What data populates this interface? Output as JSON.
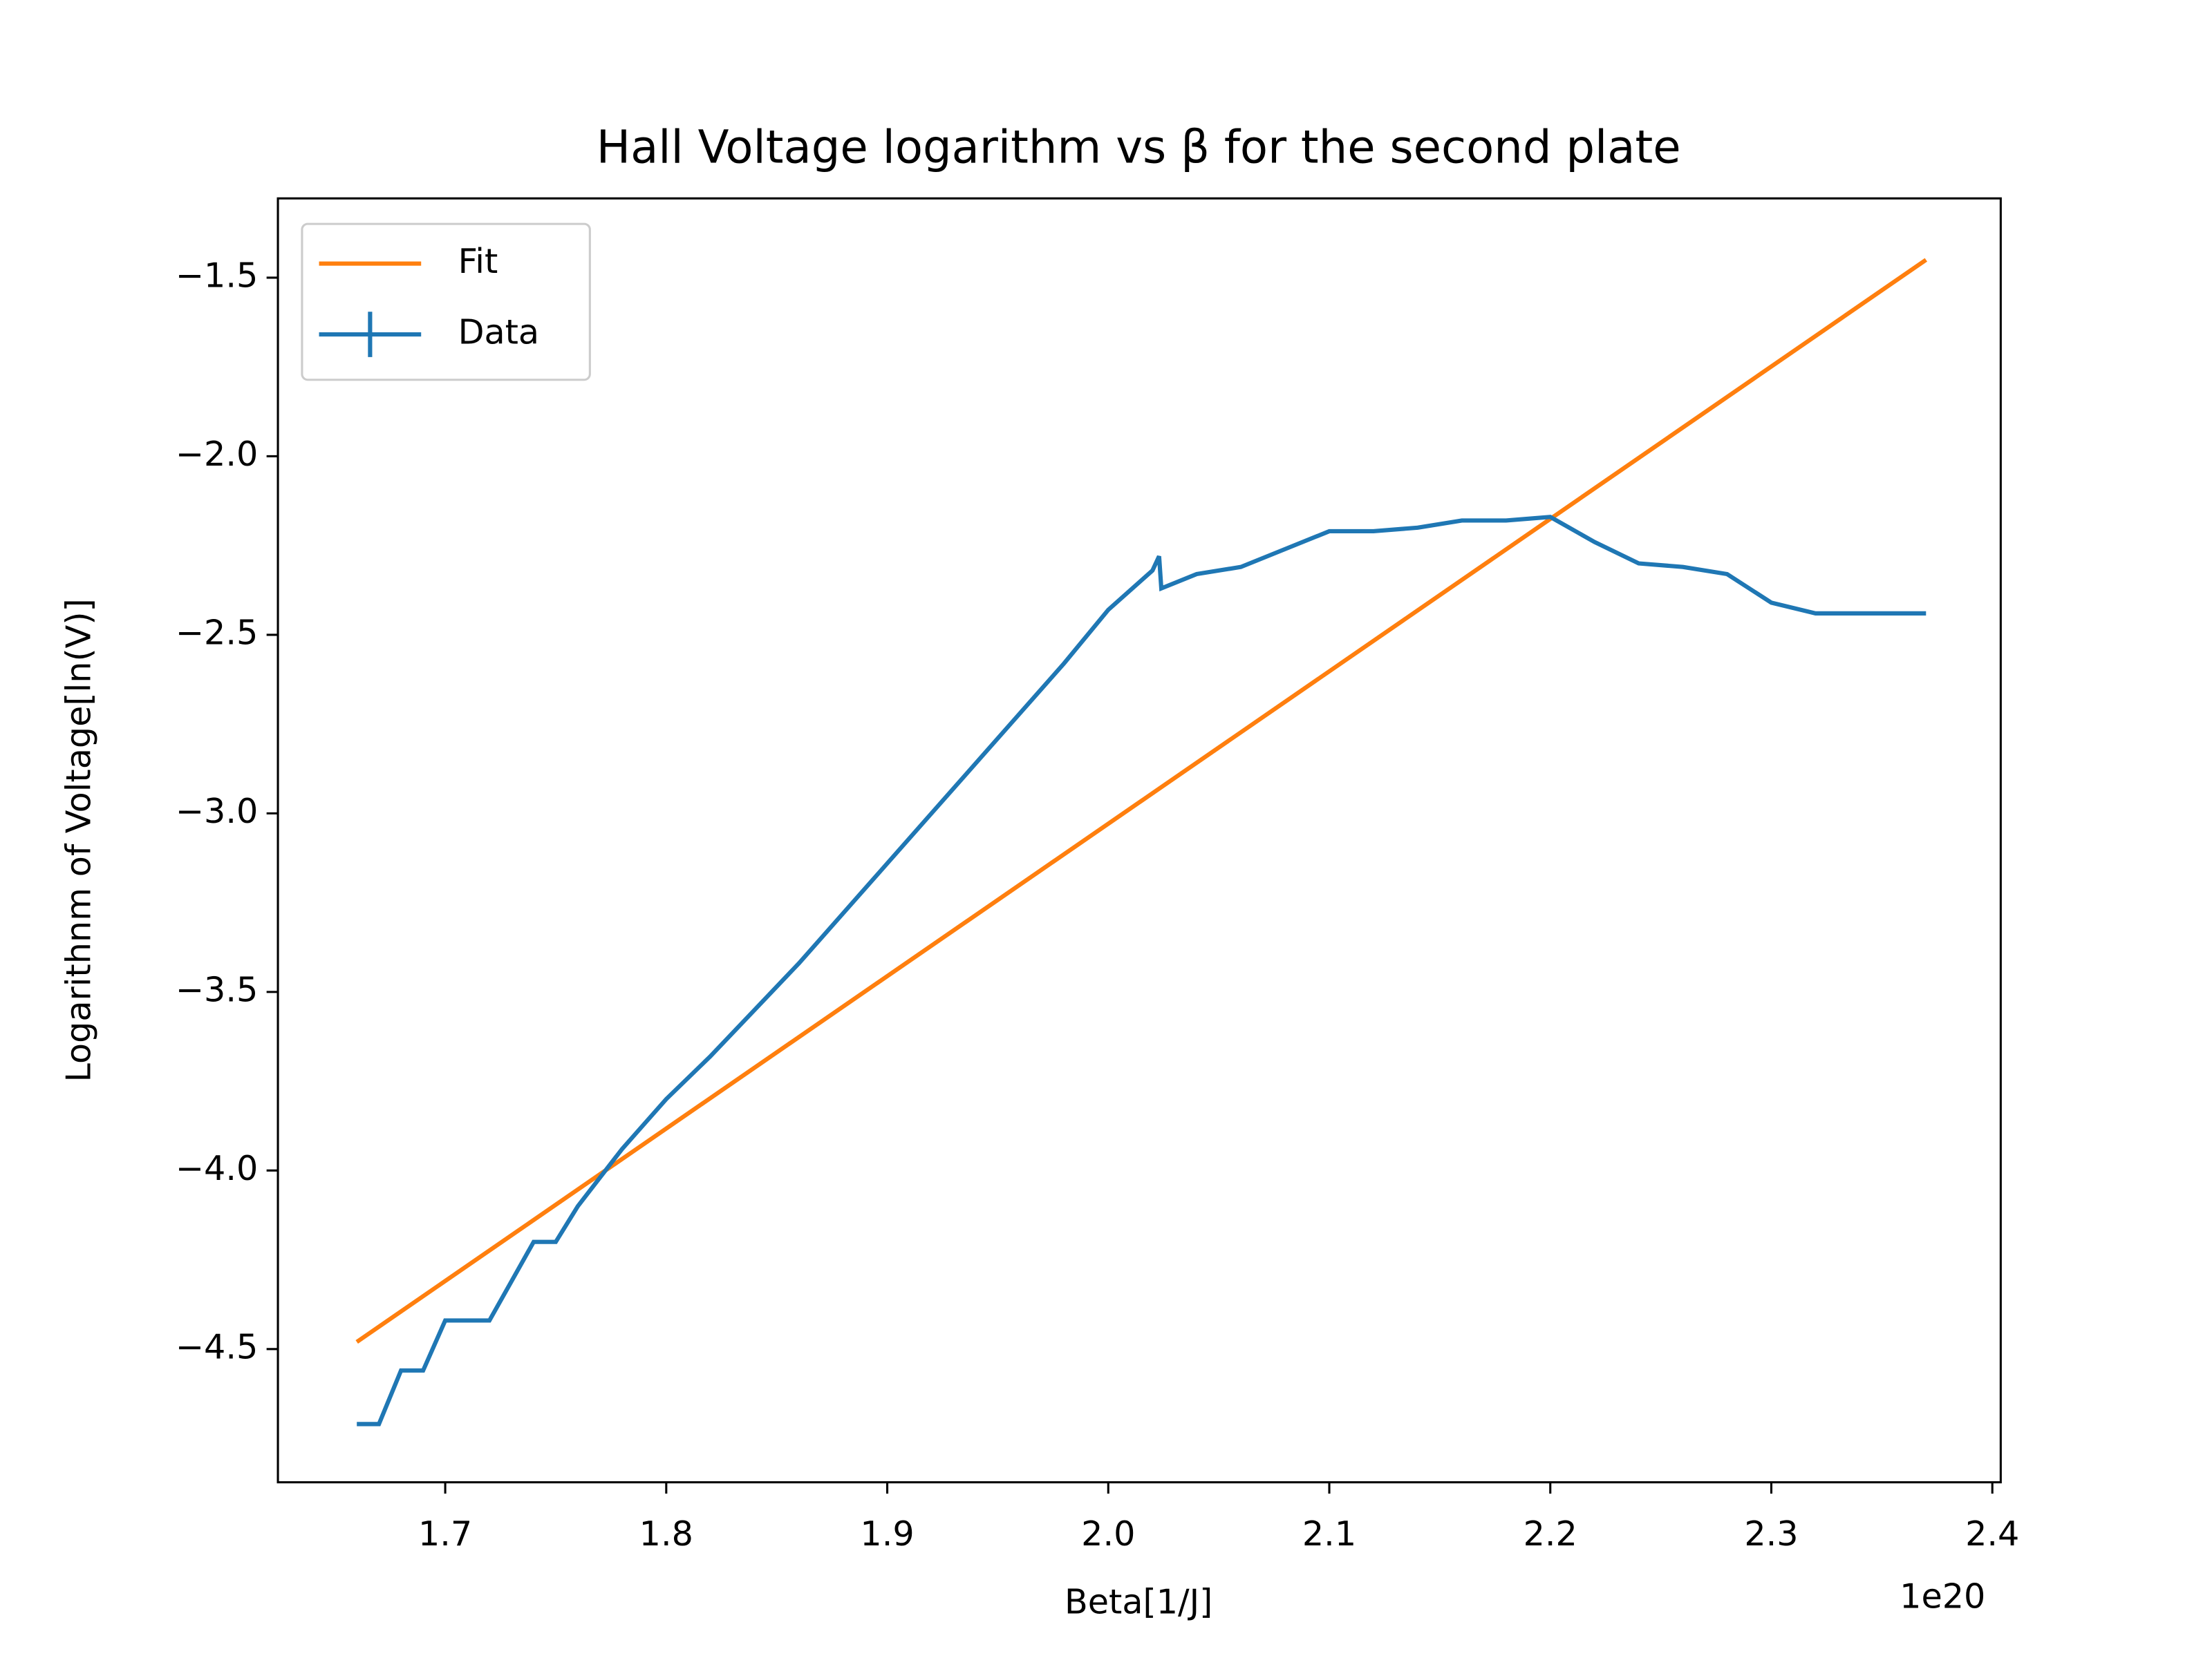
{
  "chart_data": {
    "type": "line",
    "title": "Hall Voltage logarithm vs β for the second plate",
    "x_label": "Beta[1/J]",
    "y_label": "Logarithnm of Voltage[ln(V)]",
    "x_offset_label": "1e20",
    "xlim": [
      1.6243,
      2.4038
    ],
    "ylim": [
      -4.873,
      -1.278
    ],
    "xticks": [
      1.7,
      1.8,
      1.9,
      {
        "value": 2,
        "label": "2.0"
      },
      2.1,
      2.2,
      2.3,
      2.4
    ],
    "yticks": [
      {
        "value": -1.5,
        "label": "−1.5"
      },
      {
        "value": -2,
        "label": "−2.0"
      },
      {
        "value": -2.5,
        "label": "−2.5"
      },
      {
        "value": -3,
        "label": "−3.0"
      },
      {
        "value": -3.5,
        "label": "−3.5"
      },
      {
        "value": -4,
        "label": "−4.0"
      },
      {
        "value": -4.5,
        "label": "−4.5"
      }
    ],
    "legend": "upper left",
    "series": [
      {
        "name": "Fit",
        "color": "#ff7f0e",
        "x": [
          1.66,
          2.37
        ],
        "values": [
          -4.48,
          -1.45
        ]
      },
      {
        "name": "Data",
        "color": "#1f77b4",
        "x": [
          1.66,
          1.67,
          1.68,
          1.69,
          1.7,
          1.71,
          1.72,
          1.73,
          1.74,
          1.75,
          1.76,
          1.77,
          1.78,
          1.79,
          1.8,
          1.82,
          1.84,
          1.86,
          1.88,
          1.9,
          1.92,
          1.94,
          1.96,
          1.98,
          2.0,
          2.02,
          2.023,
          2.024,
          2.04,
          2.06,
          2.08,
          2.1,
          2.12,
          2.14,
          2.16,
          2.18,
          2.2,
          2.22,
          2.24,
          2.26,
          2.28,
          2.3,
          2.32,
          2.34,
          2.37
        ],
        "values": [
          -4.71,
          -4.71,
          -4.56,
          -4.56,
          -4.42,
          -4.42,
          -4.42,
          -4.31,
          -4.2,
          -4.2,
          -4.1,
          -4.02,
          -3.94,
          -3.87,
          -3.8,
          -3.68,
          -3.55,
          -3.42,
          -3.28,
          -3.14,
          -3.0,
          -2.86,
          -2.72,
          -2.58,
          -2.43,
          -2.32,
          -2.28,
          -2.37,
          -2.33,
          -2.31,
          -2.26,
          -2.21,
          -2.21,
          -2.2,
          -2.18,
          -2.18,
          -2.17,
          -2.24,
          -2.3,
          -2.31,
          -2.33,
          -2.41,
          -2.44,
          -2.44,
          -2.44
        ]
      }
    ]
  }
}
